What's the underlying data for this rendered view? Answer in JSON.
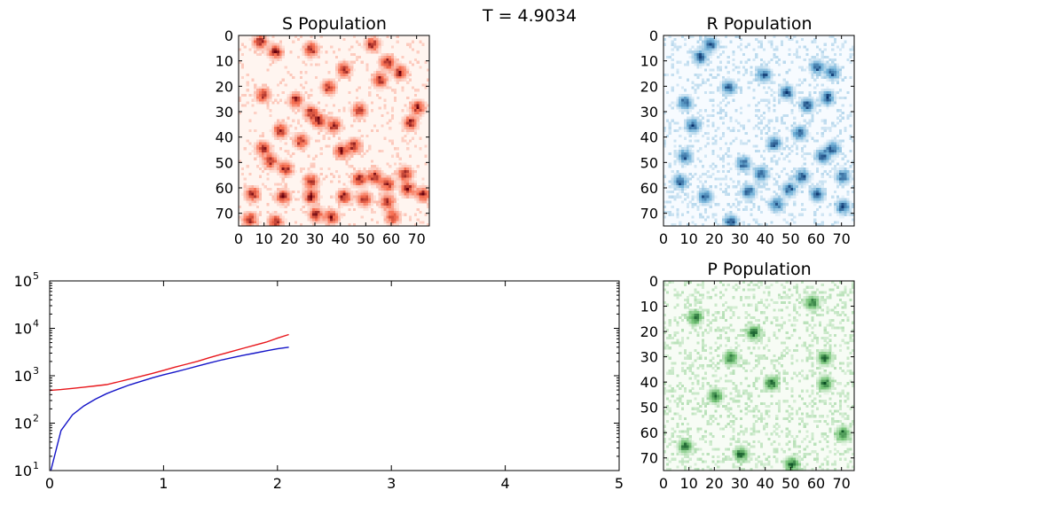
{
  "figure": {
    "time_label": "T = 4.9034"
  },
  "chart_data": [
    {
      "type": "heatmap",
      "title": "S Population",
      "colormap": "reds",
      "grid_size": 75,
      "x_ticks": [
        0,
        10,
        20,
        30,
        40,
        50,
        60,
        70
      ],
      "y_ticks": [
        0,
        10,
        20,
        30,
        40,
        50,
        60,
        70
      ],
      "xlim": [
        0,
        75
      ],
      "ylim": [
        75,
        0
      ],
      "density": 0.22,
      "clusters": [
        [
          8,
          2
        ],
        [
          14,
          6
        ],
        [
          28,
          5
        ],
        [
          52,
          3
        ],
        [
          58,
          10
        ],
        [
          63,
          14
        ],
        [
          55,
          17
        ],
        [
          41,
          13
        ],
        [
          35,
          20
        ],
        [
          9,
          23
        ],
        [
          22,
          25
        ],
        [
          28,
          30
        ],
        [
          31,
          33
        ],
        [
          47,
          29
        ],
        [
          37,
          35
        ],
        [
          70,
          28
        ],
        [
          67,
          34
        ],
        [
          45,
          43
        ],
        [
          16,
          37
        ],
        [
          9,
          44
        ],
        [
          24,
          41
        ],
        [
          12,
          49
        ],
        [
          18,
          52
        ],
        [
          40,
          45
        ],
        [
          53,
          55
        ],
        [
          58,
          58
        ],
        [
          65,
          54
        ],
        [
          47,
          56
        ],
        [
          66,
          60
        ],
        [
          28,
          57
        ],
        [
          28,
          63
        ],
        [
          5,
          62
        ],
        [
          17,
          63
        ],
        [
          41,
          63
        ],
        [
          49,
          64
        ],
        [
          58,
          65
        ],
        [
          72,
          62
        ],
        [
          30,
          70
        ],
        [
          36,
          71
        ],
        [
          14,
          73
        ],
        [
          60,
          71
        ],
        [
          4,
          72
        ]
      ]
    },
    {
      "type": "heatmap",
      "title": "R Population",
      "colormap": "blues",
      "grid_size": 75,
      "x_ticks": [
        0,
        10,
        20,
        30,
        40,
        50,
        60,
        70
      ],
      "y_ticks": [
        0,
        10,
        20,
        30,
        40,
        50,
        60,
        70
      ],
      "xlim": [
        0,
        75
      ],
      "ylim": [
        75,
        0
      ],
      "density": 0.45,
      "clusters": [
        [
          14,
          8
        ],
        [
          18,
          3
        ],
        [
          60,
          12
        ],
        [
          66,
          14
        ],
        [
          39,
          15
        ],
        [
          25,
          20
        ],
        [
          48,
          22
        ],
        [
          8,
          26
        ],
        [
          56,
          27
        ],
        [
          64,
          24
        ],
        [
          11,
          35
        ],
        [
          53,
          38
        ],
        [
          43,
          42
        ],
        [
          66,
          44
        ],
        [
          62,
          47
        ],
        [
          8,
          47
        ],
        [
          31,
          50
        ],
        [
          38,
          54
        ],
        [
          54,
          55
        ],
        [
          70,
          55
        ],
        [
          49,
          60
        ],
        [
          6,
          57
        ],
        [
          16,
          63
        ],
        [
          33,
          61
        ],
        [
          60,
          62
        ],
        [
          26,
          73
        ],
        [
          44,
          66
        ],
        [
          70,
          67
        ]
      ]
    },
    {
      "type": "heatmap",
      "title": "P Population",
      "colormap": "greens",
      "grid_size": 75,
      "x_ticks": [
        0,
        10,
        20,
        30,
        40,
        50,
        60,
        70
      ],
      "y_ticks": [
        0,
        10,
        20,
        30,
        40,
        50,
        60,
        70
      ],
      "xlim": [
        0,
        75
      ],
      "ylim": [
        75,
        0
      ],
      "density": 0.55,
      "clusters": [
        [
          12,
          14
        ],
        [
          35,
          20
        ],
        [
          58,
          8
        ],
        [
          63,
          30
        ],
        [
          20,
          45
        ],
        [
          42,
          40
        ],
        [
          63,
          40
        ],
        [
          8,
          65
        ],
        [
          30,
          68
        ],
        [
          50,
          72
        ],
        [
          70,
          60
        ],
        [
          26,
          30
        ]
      ]
    },
    {
      "type": "line",
      "title": "",
      "xlabel": "",
      "ylabel": "",
      "xlim": [
        0,
        5
      ],
      "ylim": [
        10,
        100000
      ],
      "yscale": "log",
      "x_ticks": [
        0,
        1,
        2,
        3,
        4,
        5
      ],
      "y_ticks": [
        {
          "base": "10",
          "exp": "1",
          "value": 10
        },
        {
          "base": "10",
          "exp": "2",
          "value": 100
        },
        {
          "base": "10",
          "exp": "3",
          "value": 1000
        },
        {
          "base": "10",
          "exp": "4",
          "value": 10000
        },
        {
          "base": "10",
          "exp": "5",
          "value": 100000
        }
      ],
      "series": [
        {
          "color": "#e8161b",
          "x": [
            0,
            0.1,
            0.2,
            0.3,
            0.4,
            0.5,
            0.6,
            0.7,
            0.8,
            0.9,
            1.0,
            1.1,
            1.2,
            1.3,
            1.4,
            1.5,
            1.6,
            1.7,
            1.8,
            1.9,
            2.0,
            2.1
          ],
          "y": [
            490,
            510,
            540,
            575,
            610,
            650,
            740,
            850,
            970,
            1120,
            1300,
            1520,
            1750,
            2020,
            2400,
            2800,
            3250,
            3800,
            4400,
            5100,
            6200,
            7400
          ]
        },
        {
          "color": "#1414c8",
          "x": [
            0,
            0.1,
            0.2,
            0.3,
            0.4,
            0.5,
            0.6,
            0.7,
            0.8,
            0.9,
            1.0,
            1.1,
            1.2,
            1.3,
            1.4,
            1.5,
            1.6,
            1.7,
            1.8,
            1.9,
            2.0,
            2.1
          ],
          "y": [
            8,
            70,
            150,
            230,
            320,
            420,
            520,
            640,
            760,
            900,
            1050,
            1200,
            1380,
            1600,
            1850,
            2120,
            2400,
            2700,
            3000,
            3350,
            3700,
            4000
          ]
        }
      ]
    }
  ]
}
